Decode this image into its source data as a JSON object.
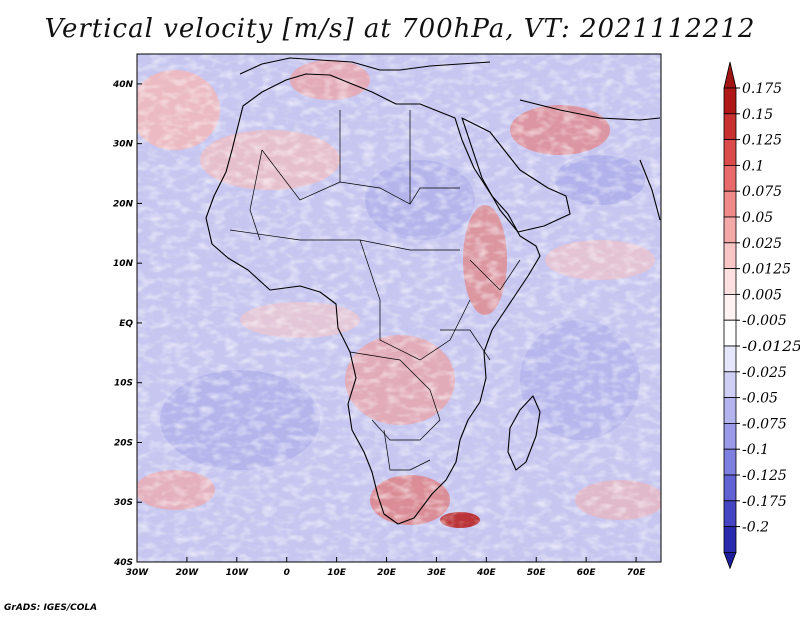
{
  "title": "Vertical velocity [m/s] at 700hPa, VT: 2021112212",
  "credit": "GrADS: IGES/COLA",
  "map": {
    "variable": "Vertical velocity",
    "units": "m/s",
    "level": "700hPa",
    "valid_time": "2021112212",
    "lon_range": [
      -30,
      75
    ],
    "lat_range": [
      -40,
      45
    ],
    "lon_ticks": [
      {
        "value": -30,
        "label": "30W"
      },
      {
        "value": -20,
        "label": "20W"
      },
      {
        "value": -10,
        "label": "10W"
      },
      {
        "value": 0,
        "label": "0"
      },
      {
        "value": 10,
        "label": "10E"
      },
      {
        "value": 20,
        "label": "20E"
      },
      {
        "value": 30,
        "label": "30E"
      },
      {
        "value": 40,
        "label": "40E"
      },
      {
        "value": 50,
        "label": "50E"
      },
      {
        "value": 60,
        "label": "60E"
      },
      {
        "value": 70,
        "label": "70E"
      }
    ],
    "lat_ticks": [
      {
        "value": 40,
        "label": "40N"
      },
      {
        "value": 30,
        "label": "30N"
      },
      {
        "value": 20,
        "label": "20N"
      },
      {
        "value": 10,
        "label": "10N"
      },
      {
        "value": 0,
        "label": "EQ"
      },
      {
        "value": -10,
        "label": "10S"
      },
      {
        "value": -20,
        "label": "20S"
      },
      {
        "value": -30,
        "label": "30S"
      },
      {
        "value": -40,
        "label": "40S"
      }
    ]
  },
  "colorbar": {
    "levels": [
      {
        "label": "0.175",
        "color": "#b01818"
      },
      {
        "label": "0.15",
        "color": "#c93030"
      },
      {
        "label": "0.125",
        "color": "#dc4b4b"
      },
      {
        "label": "0.1",
        "color": "#e86a6a"
      },
      {
        "label": "0.075",
        "color": "#f08a8a"
      },
      {
        "label": "0.05",
        "color": "#f5a8a8"
      },
      {
        "label": "0.025",
        "color": "#f9c6c6"
      },
      {
        "label": "0.0125",
        "color": "#fce0e0"
      },
      {
        "label": "0.005",
        "color": "#fff2f2"
      },
      {
        "label": "-0.005",
        "color": "#ffffff"
      },
      {
        "label": "-0.0125",
        "color": "#e6e6fa"
      },
      {
        "label": "-0.025",
        "color": "#cfcff5"
      },
      {
        "label": "-0.05",
        "color": "#b4b4ef"
      },
      {
        "label": "-0.075",
        "color": "#9a9ae8"
      },
      {
        "label": "-0.1",
        "color": "#7f7fe0"
      },
      {
        "label": "-0.125",
        "color": "#6262d4"
      },
      {
        "label": "-0.175",
        "color": "#4545c4"
      },
      {
        "label": "-0.2",
        "color": "#2a2aae"
      }
    ],
    "over_color": "#a01414",
    "under_color": "#1e1e9a"
  },
  "colors": {
    "background_field": "#c6c6f0",
    "coastline": "#000000",
    "plot_border": "#000000"
  }
}
